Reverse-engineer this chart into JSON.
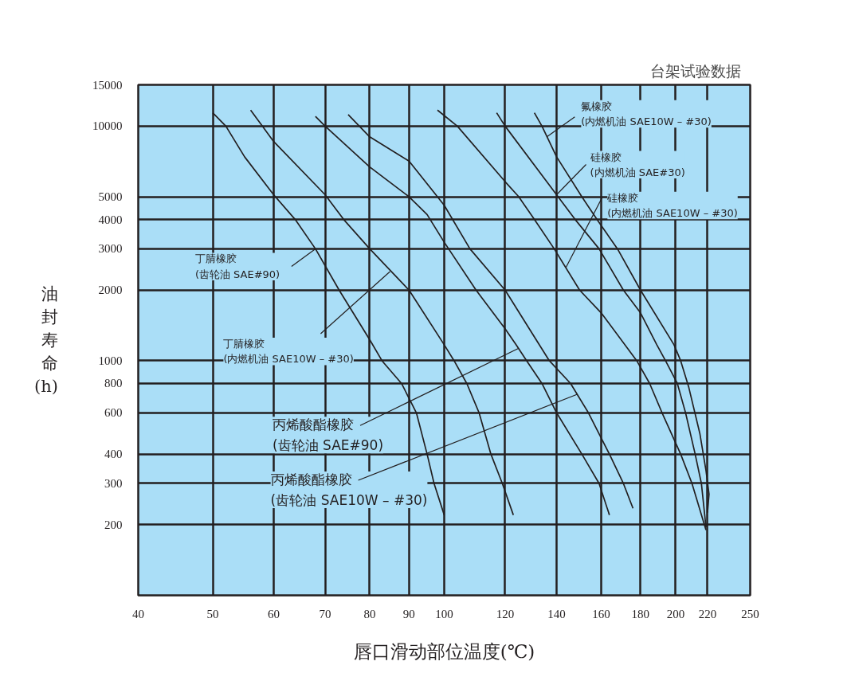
{
  "chart_data": {
    "type": "line",
    "title": "台架试验数据",
    "xlabel": "唇口滑动部位温度(℃)",
    "ylabel": "油封寿命(h)",
    "log": "xy",
    "xlim": [
      40,
      250
    ],
    "ylim": [
      100,
      15000
    ],
    "xticks": [
      40,
      50,
      60,
      70,
      80,
      90,
      100,
      120,
      140,
      160,
      180,
      200,
      220,
      250
    ],
    "yticks": [
      200,
      300,
      400,
      600,
      800,
      1000,
      2000,
      3000,
      4000,
      5000,
      10000,
      15000
    ],
    "grid": true,
    "series": [
      {
        "color": "#231f20",
        "x": [
          50,
          52,
          55,
          60,
          64,
          68,
          73,
          80,
          83,
          88,
          92,
          95,
          97,
          100
        ],
        "values": [
          11400,
          10000,
          7400,
          5100,
          4000,
          3000,
          2000,
          1230,
          1000,
          800,
          600,
          400,
          300,
          220
        ]
      },
      {
        "color": "#231f20",
        "x": [
          56,
          58,
          60,
          70,
          74,
          80,
          90,
          100,
          103,
          107,
          111,
          115,
          119,
          123
        ],
        "values": [
          11700,
          10000,
          8600,
          5100,
          4000,
          3000,
          2000,
          1170,
          1000,
          800,
          600,
          400,
          300,
          220
        ]
      },
      {
        "color": "#231f20",
        "x": [
          68,
          70,
          80,
          90,
          95,
          100,
          110,
          120,
          124,
          128,
          134,
          140,
          151,
          159,
          164
        ],
        "values": [
          11000,
          10000,
          6700,
          5000,
          4200,
          3200,
          2000,
          1370,
          1170,
          1000,
          800,
          600,
          400,
          300,
          220
        ]
      },
      {
        "color": "#231f20",
        "x": [
          75,
          80,
          90,
          100,
          108,
          120,
          137,
          146,
          154,
          164,
          171,
          176
        ],
        "values": [
          11200,
          9000,
          7100,
          4600,
          3000,
          2000,
          1000,
          800,
          600,
          400,
          300,
          235
        ]
      },
      {
        "color": "#231f20",
        "x": [
          98,
          104,
          120,
          125,
          131,
          139,
          150,
          160,
          178,
          185,
          192,
          203,
          210,
          219
        ],
        "values": [
          11700,
          10000,
          5800,
          5000,
          4000,
          3000,
          2000,
          1600,
          1000,
          800,
          600,
          400,
          300,
          190
        ]
      },
      {
        "color": "#231f20",
        "x": [
          117,
          120,
          140,
          148,
          159,
          171,
          180,
          189,
          194,
          201,
          206,
          212,
          216,
          219
        ],
        "values": [
          11400,
          10000,
          5100,
          4000,
          3000,
          2000,
          1600,
          1170,
          1000,
          800,
          600,
          400,
          300,
          195
        ]
      },
      {
        "color": "#231f20",
        "x": [
          131,
          134,
          140,
          151,
          158,
          168,
          180,
          199,
          203,
          208,
          215,
          219,
          221,
          220
        ],
        "values": [
          11400,
          10000,
          7400,
          5000,
          4000,
          3000,
          2000,
          1170,
          1000,
          770,
          490,
          340,
          270,
          225
        ]
      }
    ],
    "annotations": [
      {
        "text": "丁腈橡胶\n(齿轮油 SAE#90)",
        "x": 68,
        "y": 3000
      },
      {
        "text": "丁腈橡胶\n(内燃机油 SAE10W – #30)",
        "x": 85,
        "y": 2400
      },
      {
        "text": "丙烯酸酯橡胶\n(齿轮油 SAE#90)",
        "x": 125,
        "y": 1130
      },
      {
        "text": "丙烯酸酯橡胶\n(齿轮油 SAE10W – #30)",
        "x": 149,
        "y": 720
      },
      {
        "text": "硅橡胶\n(内燃机油 SAE10W – #30)",
        "x": 144,
        "y": 2500
      },
      {
        "text": "硅橡胶\n(内燃机油 SAE#30)",
        "x": 140,
        "y": 5100
      },
      {
        "text": "氟橡胶\n(内燃机油 SAE10W – #30)",
        "x": 136,
        "y": 9000
      }
    ]
  }
}
